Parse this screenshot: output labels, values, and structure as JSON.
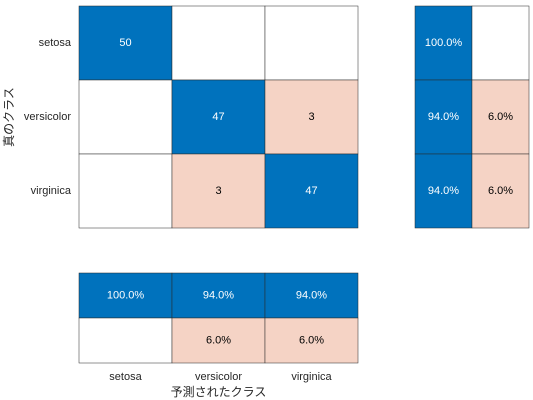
{
  "chart_data": {
    "type": "heatmap",
    "title": "",
    "xlabel": "予測されたクラス",
    "ylabel": "真のクラス",
    "classes": [
      "setosa",
      "versicolor",
      "virginica"
    ],
    "matrix": [
      [
        50,
        null,
        null
      ],
      [
        null,
        47,
        3
      ],
      [
        null,
        3,
        47
      ]
    ],
    "row_summary": {
      "true_positive_rate": [
        "100.0%",
        "94.0%",
        "94.0%"
      ],
      "false_negative_rate": [
        null,
        "6.0%",
        "6.0%"
      ]
    },
    "column_summary": {
      "positive_predictive_value": [
        "100.0%",
        "94.0%",
        "94.0%"
      ],
      "false_discovery_rate": [
        null,
        "6.0%",
        "6.0%"
      ]
    },
    "colors": {
      "correct": "#0072bd",
      "incorrect": "#f5d3c5",
      "empty": "#ffffff",
      "correct_text": "#ffffff",
      "incorrect_text": "#000000",
      "grid": "#262626"
    }
  }
}
